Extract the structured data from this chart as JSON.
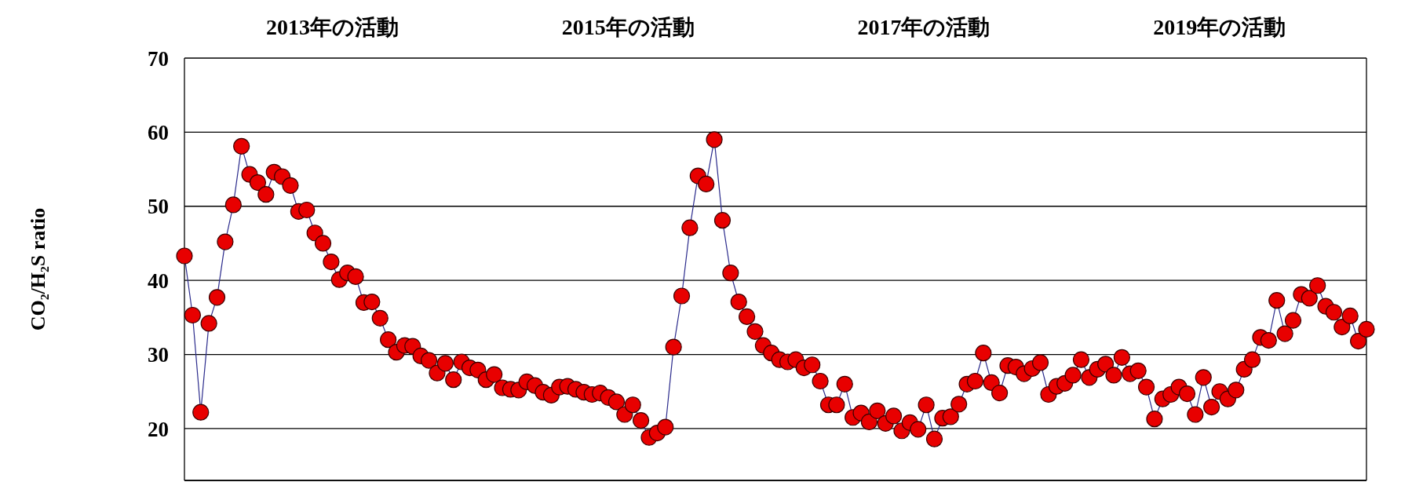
{
  "chart_data": {
    "type": "line",
    "ylabel": "CO₂/H₂S ratio",
    "annotations": [
      "2013年の活動",
      "2015年の活動",
      "2017年の活動",
      "2019年の活動"
    ],
    "categories": [
      null,
      null,
      null,
      null,
      null,
      null,
      null,
      null,
      null,
      null,
      null,
      null,
      null,
      null,
      null,
      null,
      null,
      null,
      null,
      null,
      null,
      null,
      null,
      null,
      null,
      null,
      null,
      null,
      null,
      null,
      null,
      null,
      null,
      null,
      null,
      null,
      null,
      null,
      null,
      null,
      null,
      null,
      null,
      null,
      null,
      null,
      null,
      null,
      null,
      null,
      null,
      null,
      null,
      null,
      null,
      null,
      null,
      null,
      null,
      null,
      null,
      null,
      null,
      null,
      null,
      null,
      null,
      null,
      null,
      null,
      null,
      null,
      null,
      null,
      null,
      null,
      null,
      null,
      null,
      null,
      null,
      null,
      null,
      null,
      null,
      null,
      null,
      null,
      null,
      null,
      null,
      null,
      null,
      null,
      null,
      null,
      null,
      null,
      null,
      null,
      null,
      null,
      null,
      null,
      null,
      null,
      null,
      null,
      null,
      null,
      null,
      null,
      null,
      null,
      null,
      null,
      null,
      null,
      null,
      null,
      null,
      null,
      null,
      null,
      null,
      null,
      null,
      null,
      null,
      null,
      null,
      null,
      null,
      null,
      null,
      null,
      null,
      null,
      null,
      null,
      null,
      null,
      null,
      null,
      null,
      null
    ],
    "series": [
      {
        "color": "#e80000",
        "values": [
          43.3,
          35.3,
          22.2,
          34.2,
          37.7,
          45.2,
          50.2,
          58.1,
          54.3,
          53.2,
          51.6,
          54.6,
          54.0,
          52.8,
          49.3,
          49.5,
          46.4,
          45.0,
          42.5,
          40.1,
          41.0,
          40.5,
          37.0,
          37.1,
          34.9,
          32.0,
          30.3,
          31.2,
          31.1,
          29.8,
          29.2,
          27.5,
          28.8,
          26.6,
          29.0,
          28.2,
          27.9,
          26.6,
          27.3,
          25.5,
          25.3,
          25.2,
          26.3,
          25.8,
          24.9,
          24.5,
          25.6,
          25.7,
          25.3,
          24.9,
          24.6,
          24.8,
          24.2,
          23.6,
          21.9,
          23.2,
          21.1,
          18.8,
          19.4,
          20.2,
          31.0,
          37.9,
          47.1,
          54.1,
          53.0,
          59.0,
          48.1,
          41.0,
          37.1,
          35.1,
          33.1,
          31.2,
          30.2,
          29.3,
          29.0,
          29.3,
          28.2,
          28.6,
          26.4,
          23.2,
          23.2,
          26.0,
          21.5,
          22.1,
          20.9,
          22.4,
          20.7,
          21.7,
          19.7,
          20.8,
          19.9,
          23.2,
          18.6,
          21.4,
          21.6,
          23.3,
          26.0,
          26.4,
          30.2,
          26.2,
          24.8,
          28.5,
          28.3,
          27.4,
          28.1,
          28.9,
          24.6,
          25.7,
          26.1,
          27.2,
          29.3,
          26.9,
          28.0,
          28.7,
          27.2,
          29.6,
          27.4,
          27.8,
          25.6,
          21.3,
          24.0,
          24.6,
          25.6,
          24.7,
          21.9,
          26.9,
          22.9,
          25.0,
          24.0,
          25.2,
          28.0,
          29.3,
          32.3,
          31.9,
          37.3,
          32.8,
          34.6,
          38.1,
          37.6,
          39.3,
          36.5,
          35.7,
          33.7,
          35.2,
          31.8,
          33.4
        ]
      }
    ],
    "marker": "circle",
    "ylim": [
      13,
      70
    ],
    "yticks": [
      20,
      30,
      40,
      50,
      60,
      70
    ],
    "grid": "y",
    "line_style": "solid"
  }
}
